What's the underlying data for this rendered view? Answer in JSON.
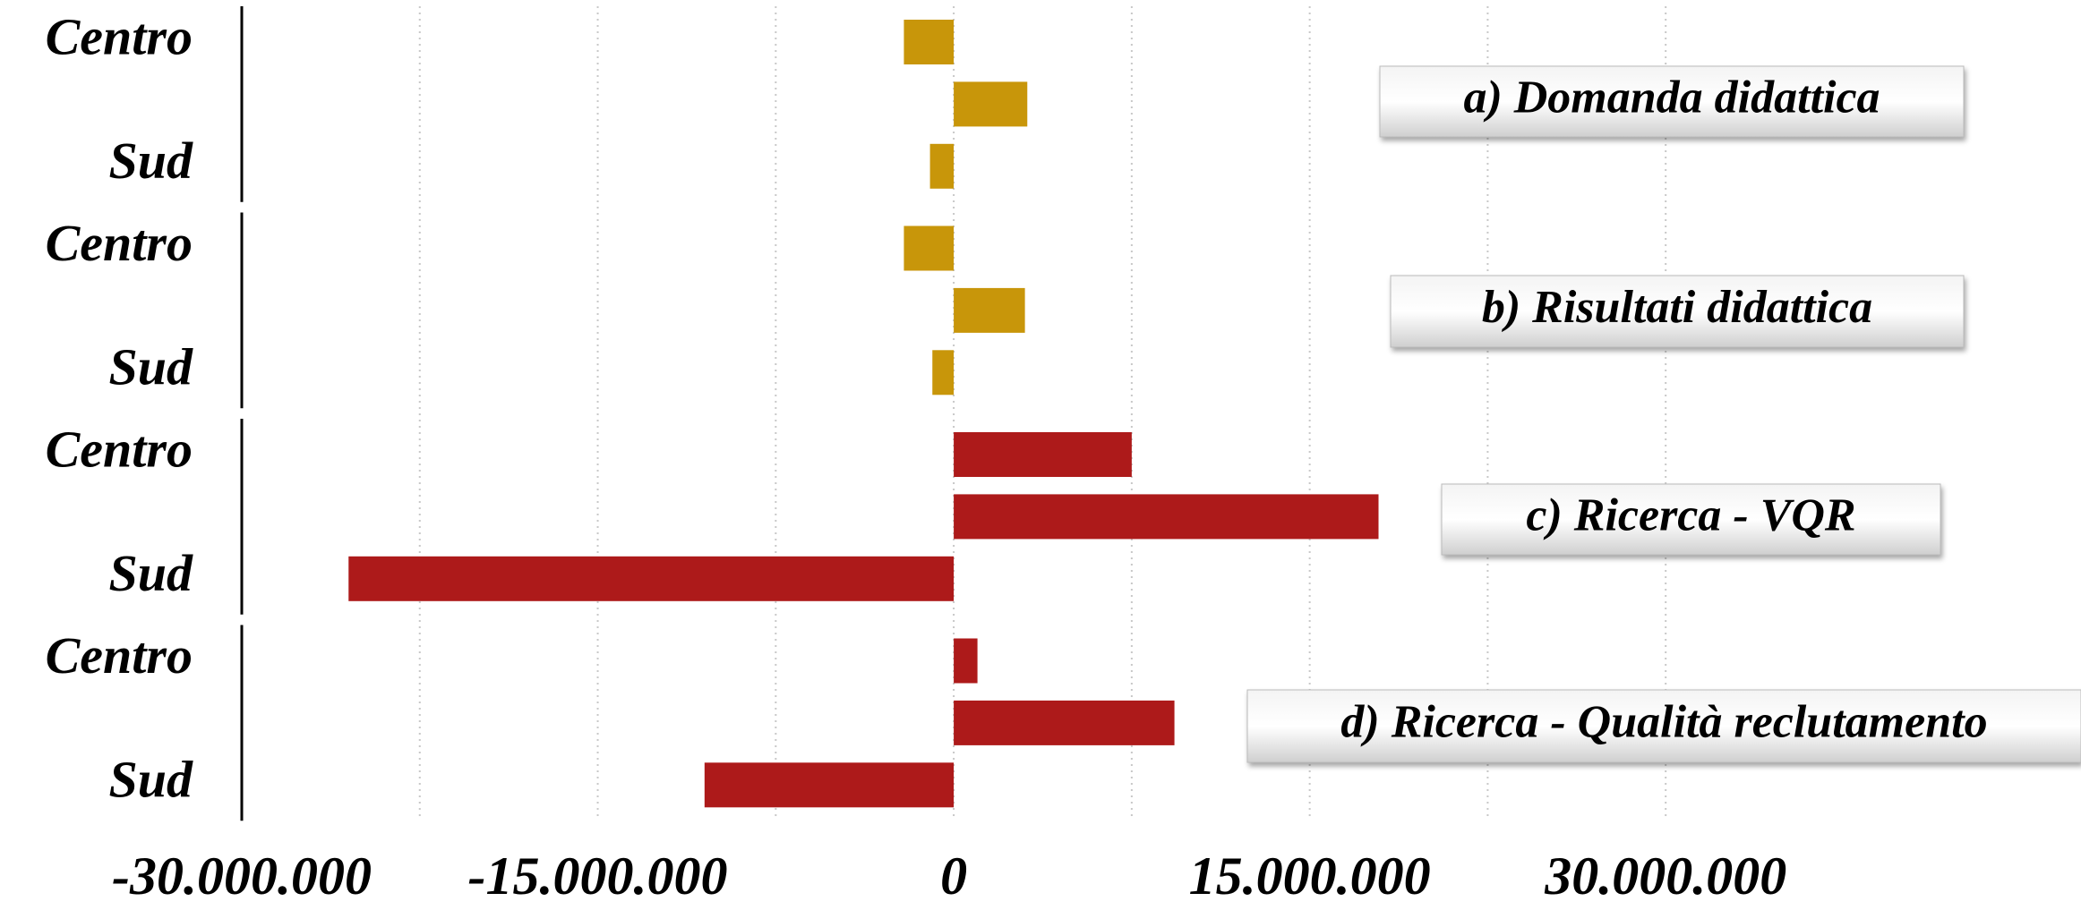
{
  "chart_data": {
    "type": "bar",
    "orientation": "horizontal",
    "xlim": [
      -30000000,
      47500000
    ],
    "xticks": [
      {
        "value": -30000000,
        "label": "-30.000.000"
      },
      {
        "value": -15000000,
        "label": "-15.000.000"
      },
      0,
      {
        "value": 15000000,
        "label": "15.000.000"
      },
      {
        "value": 30000000,
        "label": "30.000.000"
      }
    ],
    "minor_xticks": [
      -22500000,
      -7500000,
      7500000,
      22500000
    ],
    "grid": true,
    "panels": [
      {
        "title": "a) Domanda didattica",
        "categories": [
          "Centro",
          null,
          "Sud"
        ],
        "values": [
          -2100000,
          3100000,
          -1000000
        ],
        "color": "#c8960a"
      },
      {
        "title": "b) Risultati didattica",
        "categories": [
          "Centro",
          null,
          "Sud"
        ],
        "values": [
          -2100000,
          3000000,
          -900000
        ],
        "color": "#c8960a"
      },
      {
        "title": "c) Ricerca - VQR",
        "categories": [
          "Centro",
          null,
          "Sud"
        ],
        "values": [
          7500000,
          17900000,
          -25500000
        ],
        "color": "#ad1a1a"
      },
      {
        "title": "d) Ricerca - Qualità reclutamento",
        "categories": [
          "Centro",
          null,
          "Sud"
        ],
        "values": [
          1000000,
          9300000,
          -10500000
        ],
        "color": "#ad1a1a"
      }
    ]
  }
}
